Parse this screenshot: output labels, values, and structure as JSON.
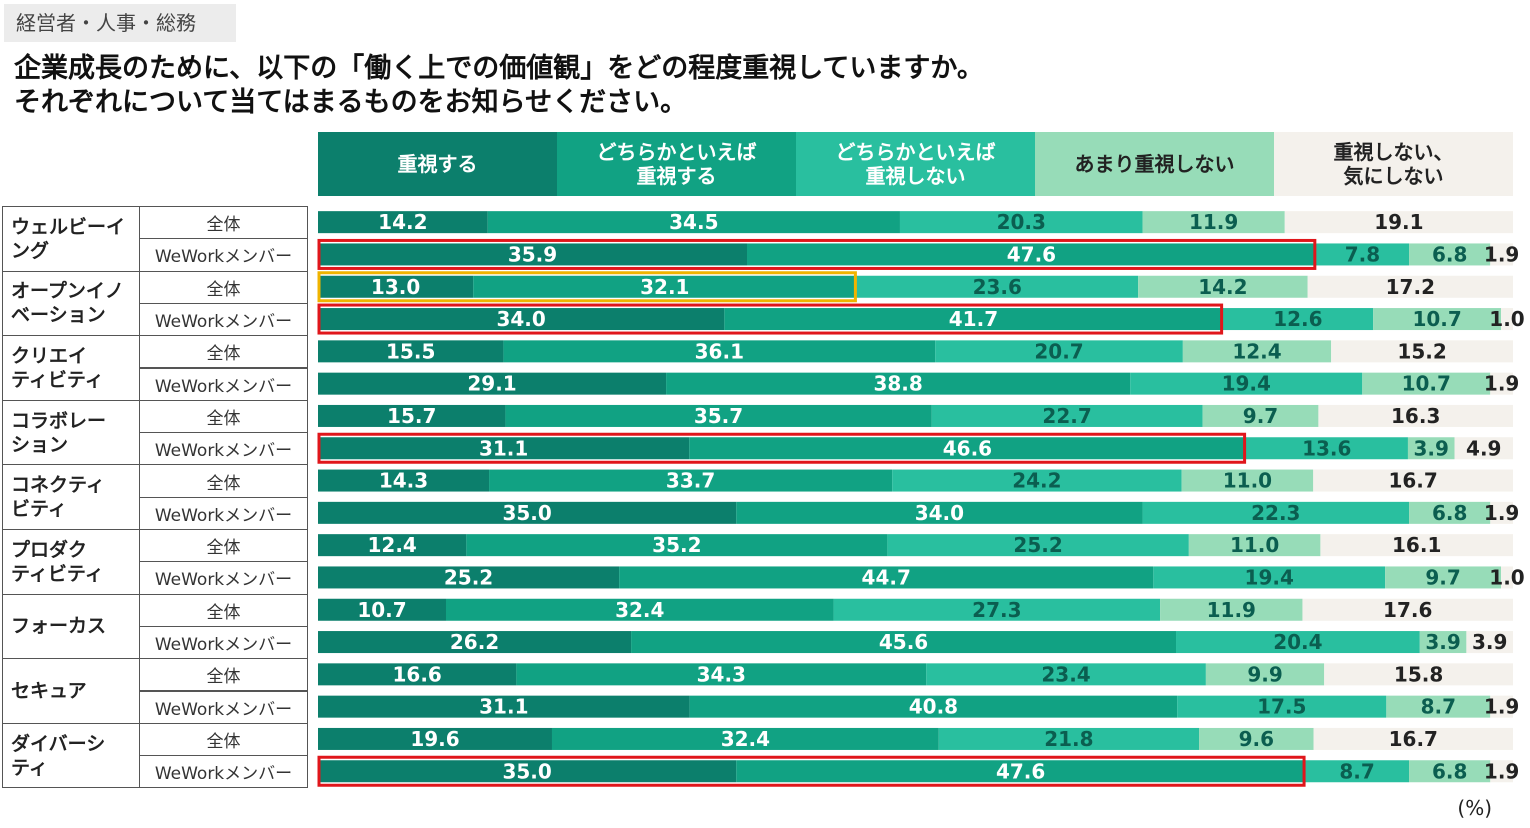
{
  "header": {
    "tag": "経営者・人事・総務",
    "title_line1": "企業成長のために、以下の「働く上での価値観」をどの程度重視していますか。",
    "title_line2": "それぞれについて当てはまるものをお知らせください。"
  },
  "unit_note": "(%)",
  "colors": {
    "s1": "#0c7f6c",
    "s2": "#11a283",
    "s3": "#29bf9f",
    "s4": "#97dcb8",
    "s5": "#f4f1ec",
    "highlight_red": "#e0161b",
    "highlight_orange": "#f0b400"
  },
  "chart_data": {
    "type": "stacked-bar-horizontal",
    "unit": "%",
    "series_names": [
      "重視する",
      "どちらかといえば\n重視する",
      "どちらかといえば\n重視しない",
      "あまり重視しない",
      "重視しない、\n気にしない"
    ],
    "groups": [
      "全体",
      "WeWorkメンバー"
    ],
    "categories": [
      {
        "name": "ウェルビーイ\nング",
        "rows": [
          {
            "group": "全体",
            "values": [
              14.2,
              34.5,
              20.3,
              11.9,
              19.1
            ],
            "highlight": null
          },
          {
            "group": "WeWorkメンバー",
            "values": [
              35.9,
              47.6,
              7.8,
              6.8,
              1.9
            ],
            "highlight": "red"
          }
        ]
      },
      {
        "name": "オープンイノ\nベーション",
        "rows": [
          {
            "group": "全体",
            "values": [
              13.0,
              32.1,
              23.6,
              14.2,
              17.2
            ],
            "highlight": "orange"
          },
          {
            "group": "WeWorkメンバー",
            "values": [
              34.0,
              41.7,
              12.6,
              10.7,
              1.0
            ],
            "highlight": "red"
          }
        ]
      },
      {
        "name": "クリエイ\nティビティ",
        "rows": [
          {
            "group": "全体",
            "values": [
              15.5,
              36.1,
              20.7,
              12.4,
              15.2
            ],
            "highlight": null
          },
          {
            "group": "WeWorkメンバー",
            "values": [
              29.1,
              38.8,
              19.4,
              10.7,
              1.9
            ],
            "highlight": null
          }
        ]
      },
      {
        "name": "コラボレー\nション",
        "rows": [
          {
            "group": "全体",
            "values": [
              15.7,
              35.7,
              22.7,
              9.7,
              16.3
            ],
            "highlight": null
          },
          {
            "group": "WeWorkメンバー",
            "values": [
              31.1,
              46.6,
              13.6,
              3.9,
              4.9
            ],
            "highlight": "red"
          }
        ]
      },
      {
        "name": "コネクティ\nビティ",
        "rows": [
          {
            "group": "全体",
            "values": [
              14.3,
              33.7,
              24.2,
              11.0,
              16.7
            ],
            "highlight": null
          },
          {
            "group": "WeWorkメンバー",
            "values": [
              35.0,
              34.0,
              22.3,
              6.8,
              1.9
            ],
            "highlight": null
          }
        ]
      },
      {
        "name": "プロダク\nティビティ",
        "rows": [
          {
            "group": "全体",
            "values": [
              12.4,
              35.2,
              25.2,
              11.0,
              16.1
            ],
            "highlight": null
          },
          {
            "group": "WeWorkメンバー",
            "values": [
              25.2,
              44.7,
              19.4,
              9.7,
              1.0
            ],
            "highlight": null
          }
        ]
      },
      {
        "name": "フォーカス",
        "rows": [
          {
            "group": "全体",
            "values": [
              10.7,
              32.4,
              27.3,
              11.9,
              17.6
            ],
            "highlight": null
          },
          {
            "group": "WeWorkメンバー",
            "values": [
              26.2,
              45.6,
              20.4,
              3.9,
              3.9
            ],
            "highlight": null
          }
        ]
      },
      {
        "name": "セキュア",
        "rows": [
          {
            "group": "全体",
            "values": [
              16.6,
              34.3,
              23.4,
              9.9,
              15.8
            ],
            "highlight": null
          },
          {
            "group": "WeWorkメンバー",
            "values": [
              31.1,
              40.8,
              17.5,
              8.7,
              1.9
            ],
            "highlight": null
          }
        ]
      },
      {
        "name": "ダイバーシ\nティ",
        "rows": [
          {
            "group": "全体",
            "values": [
              19.6,
              32.4,
              21.8,
              9.6,
              16.7
            ],
            "highlight": null
          },
          {
            "group": "WeWorkメンバー",
            "values": [
              35.0,
              47.6,
              8.7,
              6.8,
              1.9
            ],
            "highlight": "red"
          }
        ]
      }
    ]
  }
}
